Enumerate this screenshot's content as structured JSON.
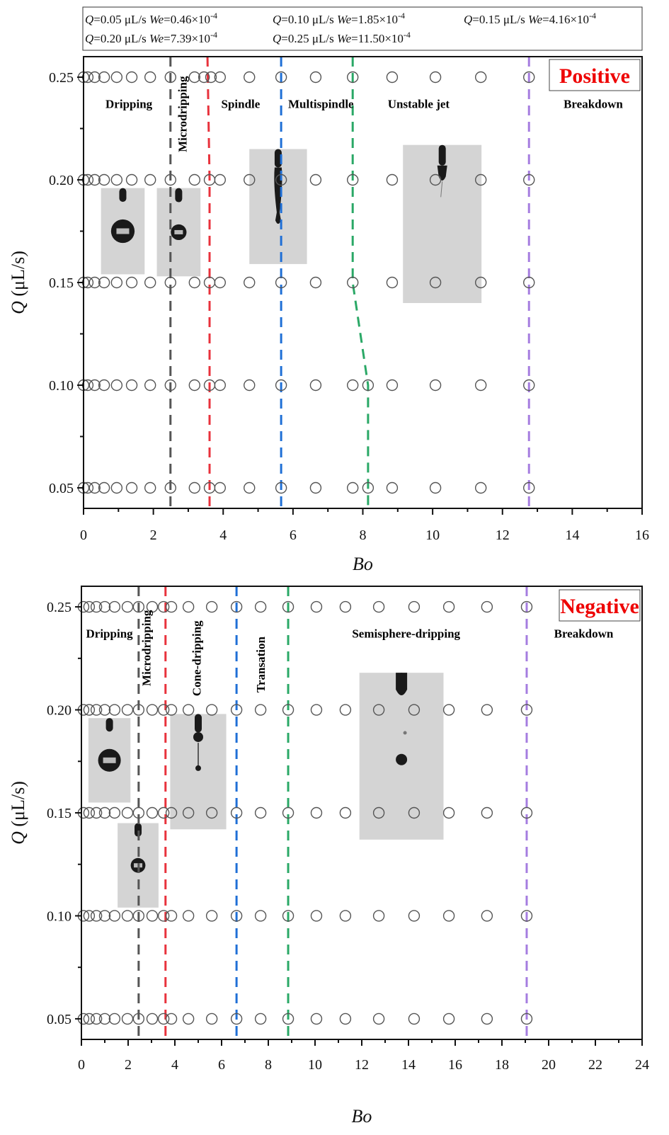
{
  "legend": {
    "lines": [
      [
        {
          "q": "Q",
          "qval": "=0.05 μL/s",
          "we": "We",
          "weval": "=0.46×10",
          "exp": "-4"
        },
        {
          "q": "Q",
          "qval": "=0.10 μL/s",
          "we": "We",
          "weval": "=1.85×10",
          "exp": "-4"
        },
        {
          "q": "Q",
          "qval": "=0.15 μL/s",
          "we": "We",
          "weval": "=4.16×10",
          "exp": "-4"
        }
      ],
      [
        {
          "q": "Q",
          "qval": "=0.20 μL/s",
          "we": "We",
          "weval": "=7.39×10",
          "exp": "-4"
        },
        {
          "q": "Q",
          "qval": "=0.25 μL/s",
          "we": "We",
          "weval": "=11.50×10",
          "exp": "-4"
        }
      ]
    ]
  },
  "colors": {
    "black_line": "#555555",
    "red_line": "#e8323c",
    "blue_line": "#1f6fd6",
    "green_line": "#2aa866",
    "purple_line": "#a57de0",
    "badge": "#ee0000",
    "marker": "#555555"
  },
  "chart_data": [
    {
      "type": "scatter",
      "title": "Positive",
      "xlabel": "Bo",
      "ylabel_var": "Q",
      "ylabel_unit": " (μL/s)",
      "xlim": [
        0,
        16
      ],
      "ylim": [
        0.04,
        0.26
      ],
      "xticks": [
        "0",
        "2",
        "4",
        "6",
        "8",
        "10",
        "12",
        "14",
        "16"
      ],
      "xtick_values": [
        0,
        2,
        4,
        6,
        8,
        10,
        12,
        14,
        16
      ],
      "yticks": [
        "0.05",
        "0.10",
        "0.15",
        "0.20",
        "0.25"
      ],
      "ytick_values": [
        0.05,
        0.1,
        0.15,
        0.2,
        0.25
      ],
      "series": [
        {
          "name": "Q=0.25",
          "y": 0.25,
          "x": [
            0,
            0.12,
            0.32,
            0.59,
            0.95,
            1.38,
            1.91,
            2.49,
            3.18,
            3.45,
            3.65,
            3.91,
            4.75,
            5.66,
            6.65,
            7.71,
            8.84,
            10.08,
            11.38,
            12.76
          ]
        },
        {
          "name": "Q=0.20",
          "y": 0.2,
          "x": [
            0,
            0.12,
            0.32,
            0.59,
            0.95,
            1.38,
            1.91,
            2.49,
            3.18,
            3.61,
            3.91,
            4.75,
            5.66,
            6.65,
            7.71,
            8.84,
            10.08,
            11.38,
            12.76
          ]
        },
        {
          "name": "Q=0.15",
          "y": 0.15,
          "x": [
            0,
            0.12,
            0.32,
            0.59,
            0.95,
            1.38,
            1.91,
            2.49,
            3.18,
            3.61,
            3.91,
            4.75,
            5.66,
            6.65,
            7.71,
            8.84,
            10.08,
            11.38,
            12.76
          ]
        },
        {
          "name": "Q=0.10",
          "y": 0.1,
          "x": [
            0,
            0.12,
            0.32,
            0.59,
            0.95,
            1.38,
            1.91,
            2.49,
            3.18,
            3.61,
            3.91,
            4.75,
            5.66,
            6.65,
            7.71,
            8.15,
            8.84,
            10.08,
            11.38,
            12.76
          ]
        },
        {
          "name": "Q=0.05",
          "y": 0.05,
          "x": [
            0,
            0.12,
            0.32,
            0.59,
            0.95,
            1.38,
            1.91,
            2.49,
            3.18,
            3.61,
            3.91,
            4.75,
            5.66,
            6.65,
            7.71,
            8.15,
            8.84,
            10.08,
            11.38,
            12.76
          ]
        }
      ],
      "boundaries": [
        {
          "name": "dripping-microdripping",
          "color_key": "black_line",
          "points": [
            [
              2.49,
              0.26
            ],
            [
              2.49,
              0.04
            ]
          ]
        },
        {
          "name": "microdripping-spindle",
          "color_key": "red_line",
          "points": [
            [
              3.55,
              0.26
            ],
            [
              3.61,
              0.2
            ],
            [
              3.61,
              0.04
            ]
          ]
        },
        {
          "name": "spindle-multispindle",
          "color_key": "blue_line",
          "points": [
            [
              5.66,
              0.26
            ],
            [
              5.66,
              0.04
            ]
          ]
        },
        {
          "name": "multispindle-unstable-jet",
          "color_key": "green_line",
          "points": [
            [
              7.71,
              0.26
            ],
            [
              7.71,
              0.15
            ],
            [
              8.15,
              0.1
            ],
            [
              8.15,
              0.04
            ]
          ]
        },
        {
          "name": "unstable-jet-breakdown",
          "color_key": "purple_line",
          "points": [
            [
              12.76,
              0.26
            ],
            [
              12.76,
              0.04
            ]
          ]
        }
      ],
      "regions": [
        {
          "label": "Dripping",
          "x": 1.3,
          "y": 0.235,
          "rotate": false
        },
        {
          "label": "Microdripping",
          "x": 2.95,
          "y": 0.232,
          "rotate": true
        },
        {
          "label": "Spindle",
          "x": 4.5,
          "y": 0.235,
          "rotate": false
        },
        {
          "label": "Multispindle",
          "x": 6.8,
          "y": 0.235,
          "rotate": false
        },
        {
          "label": "Unstable jet",
          "x": 9.6,
          "y": 0.235,
          "rotate": false
        },
        {
          "label": "Breakdown",
          "x": 14.6,
          "y": 0.235,
          "rotate": false
        }
      ],
      "insets": [
        {
          "name": "dripping-photo",
          "x0": 0.5,
          "x1": 1.75,
          "y0": 0.196,
          "y1": 0.154,
          "kind": "drop-large"
        },
        {
          "name": "microdripping-photo",
          "x0": 2.1,
          "x1": 3.35,
          "y0": 0.196,
          "y1": 0.153,
          "kind": "drop-small"
        },
        {
          "name": "spindle-photo",
          "x0": 4.75,
          "x1": 6.4,
          "y0": 0.215,
          "y1": 0.159,
          "kind": "spindle"
        },
        {
          "name": "unstable-jet-photo",
          "x0": 9.15,
          "x1": 11.4,
          "y0": 0.217,
          "y1": 0.14,
          "kind": "jet"
        }
      ]
    },
    {
      "type": "scatter",
      "title": "Negative",
      "xlabel": "Bo",
      "ylabel_var": "Q",
      "ylabel_unit": " (μL/s)",
      "xlim": [
        0,
        24
      ],
      "ylim": [
        0.04,
        0.26
      ],
      "xticks": [
        "0",
        "2",
        "4",
        "6",
        "8",
        "10",
        "12",
        "14",
        "16",
        "18",
        "20",
        "22",
        "24"
      ],
      "xtick_values": [
        0,
        2,
        4,
        6,
        8,
        10,
        12,
        14,
        16,
        18,
        20,
        22,
        24
      ],
      "yticks": [
        "0.05",
        "0.10",
        "0.15",
        "0.20",
        "0.25"
      ],
      "ytick_values": [
        0.05,
        0.1,
        0.15,
        0.2,
        0.25
      ],
      "series": [
        {
          "name": "Q=0.25",
          "y": 0.25,
          "x": [
            0.09,
            0.33,
            0.64,
            1.0,
            1.42,
            1.97,
            2.45,
            3.03,
            3.52,
            3.85,
            4.58,
            5.58,
            6.64,
            7.67,
            8.85,
            10.06,
            11.3,
            12.73,
            14.24,
            15.73,
            17.36,
            19.06
          ]
        },
        {
          "name": "Q=0.20",
          "y": 0.2,
          "x": [
            0.09,
            0.33,
            0.64,
            1.0,
            1.42,
            1.97,
            2.45,
            3.03,
            3.52,
            3.85,
            4.58,
            5.58,
            6.64,
            7.67,
            8.85,
            10.06,
            11.3,
            12.73,
            14.24,
            15.73,
            17.36,
            19.06
          ]
        },
        {
          "name": "Q=0.15",
          "y": 0.15,
          "x": [
            0.09,
            0.33,
            0.64,
            1.0,
            1.42,
            1.97,
            2.45,
            3.03,
            3.52,
            3.85,
            4.58,
            5.58,
            6.64,
            7.67,
            8.85,
            10.06,
            11.3,
            12.73,
            14.24,
            15.73,
            17.36,
            19.06
          ]
        },
        {
          "name": "Q=0.10",
          "y": 0.1,
          "x": [
            0.09,
            0.33,
            0.64,
            1.0,
            1.42,
            1.97,
            2.45,
            3.03,
            3.52,
            3.85,
            4.58,
            5.58,
            6.64,
            7.67,
            8.85,
            10.06,
            11.3,
            12.73,
            14.24,
            15.73,
            17.36,
            19.06
          ]
        },
        {
          "name": "Q=0.05",
          "y": 0.05,
          "x": [
            0.09,
            0.33,
            0.64,
            1.0,
            1.42,
            1.97,
            2.45,
            3.03,
            3.52,
            3.85,
            4.58,
            5.58,
            6.64,
            7.67,
            8.85,
            10.06,
            11.3,
            12.73,
            14.24,
            15.73,
            17.36,
            19.06
          ]
        }
      ],
      "boundaries": [
        {
          "name": "dripping-microdripping",
          "color_key": "black_line",
          "points": [
            [
              2.45,
              0.26
            ],
            [
              2.45,
              0.04
            ]
          ]
        },
        {
          "name": "microdripping-cone-dripping",
          "color_key": "red_line",
          "points": [
            [
              3.6,
              0.26
            ],
            [
              3.6,
              0.04
            ]
          ]
        },
        {
          "name": "cone-dripping-transation",
          "color_key": "blue_line",
          "points": [
            [
              6.64,
              0.26
            ],
            [
              6.64,
              0.04
            ]
          ]
        },
        {
          "name": "transation-semisphere-dripping",
          "color_key": "green_line",
          "points": [
            [
              8.85,
              0.26
            ],
            [
              8.85,
              0.04
            ]
          ]
        },
        {
          "name": "semisphere-dripping-breakdown",
          "color_key": "purple_line",
          "points": [
            [
              19.06,
              0.26
            ],
            [
              19.06,
              0.04
            ]
          ]
        }
      ],
      "regions": [
        {
          "label": "Dripping",
          "x": 1.2,
          "y": 0.235,
          "rotate": false
        },
        {
          "label": "Microdripping",
          "x": 2.95,
          "y": 0.23,
          "rotate": true
        },
        {
          "label": "Cone-dripping",
          "x": 5.1,
          "y": 0.225,
          "rotate": true
        },
        {
          "label": "Transation",
          "x": 7.85,
          "y": 0.222,
          "rotate": true
        },
        {
          "label": "Semisphere-dripping",
          "x": 13.9,
          "y": 0.235,
          "rotate": false
        },
        {
          "label": "Breakdown",
          "x": 21.5,
          "y": 0.235,
          "rotate": false
        }
      ],
      "insets": [
        {
          "name": "dripping-photo",
          "x0": 0.3,
          "x1": 2.1,
          "y0": 0.196,
          "y1": 0.155,
          "kind": "drop-large"
        },
        {
          "name": "microdripping-photo",
          "x0": 1.55,
          "x1": 3.3,
          "y0": 0.145,
          "y1": 0.104,
          "kind": "drop-small"
        },
        {
          "name": "cone-dripping-photo",
          "x0": 3.8,
          "x1": 6.2,
          "y0": 0.198,
          "y1": 0.142,
          "kind": "cone"
        },
        {
          "name": "semisphere-dripping-photo",
          "x0": 11.9,
          "x1": 15.5,
          "y0": 0.218,
          "y1": 0.137,
          "kind": "semisphere"
        }
      ]
    }
  ]
}
